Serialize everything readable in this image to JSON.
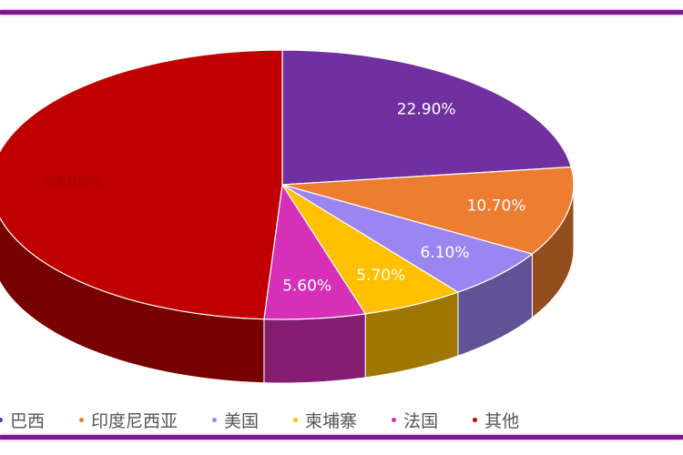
{
  "chart_data": {
    "type": "pie",
    "style": "3d",
    "categories": [
      "巴西",
      "印度尼西亚",
      "美国",
      "柬埔寨",
      "法国",
      "其他"
    ],
    "values": [
      22.9,
      10.7,
      6.1,
      5.7,
      5.6,
      49.0
    ],
    "labels": [
      "22.90%",
      "10.70%",
      "6.10%",
      "5.70%",
      "5.60%",
      "49.00%"
    ],
    "colors": [
      "#7030a0",
      "#ed7d31",
      "#9b85f0",
      "#ffc000",
      "#d630b8",
      "#c00000"
    ],
    "legend_position": "bottom"
  }
}
